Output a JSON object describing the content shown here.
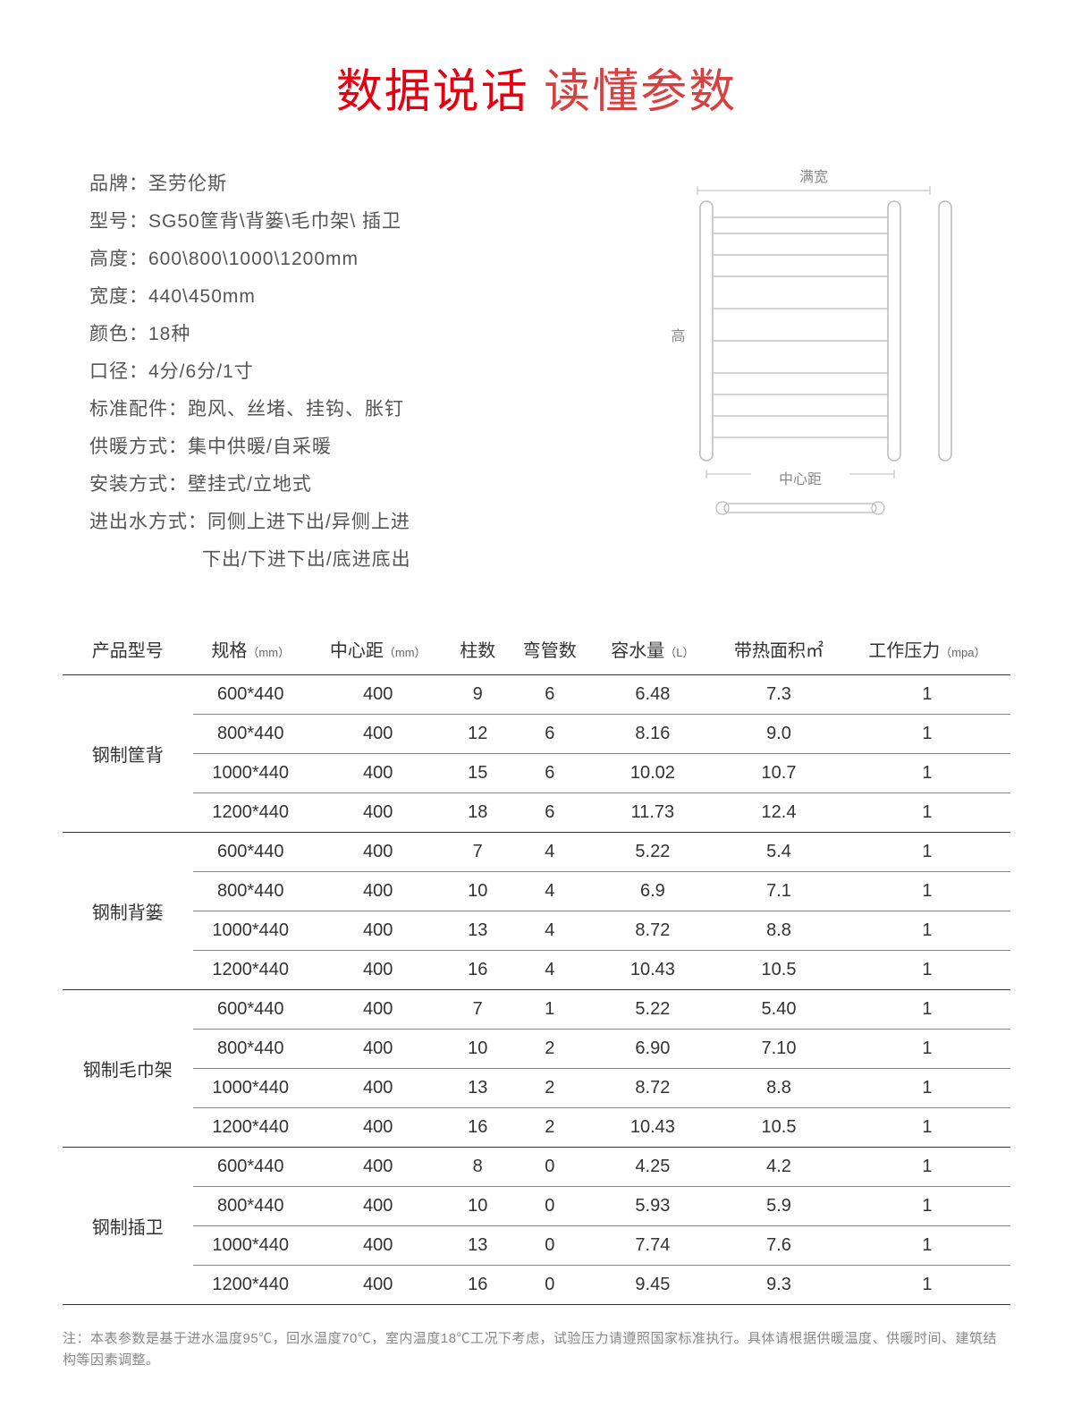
{
  "title": {
    "main": "数据说话",
    "sub": "读懂参数",
    "main_color": "#e60012",
    "sub_color": "#d84040"
  },
  "specs": [
    {
      "label": "品牌：",
      "value": "圣劳伦斯"
    },
    {
      "label": "型号：",
      "value": "SG50筐背\\背篓\\毛巾架\\ 插卫"
    },
    {
      "label": "高度：",
      "value": "600\\800\\1000\\1200mm"
    },
    {
      "label": "宽度：",
      "value": "440\\450mm"
    },
    {
      "label": "颜色：",
      "value": "18种"
    },
    {
      "label": "口径：",
      "value": "4分/6分/1寸"
    },
    {
      "label": "标准配件：",
      "value": "跑风、丝堵、挂钩、胀钉"
    },
    {
      "label": "供暖方式：",
      "value": "集中供暖/自采暖"
    },
    {
      "label": "安装方式：",
      "value": "壁挂式/立地式"
    },
    {
      "label": "进出水方式：",
      "value": "同侧上进下出/异侧上进"
    },
    {
      "label": "",
      "value": "下出/下进下出/底进底出",
      "indent": true
    }
  ],
  "diagram": {
    "label_width": "满宽",
    "label_height": "高",
    "label_center": "中心距",
    "stroke": "#bbbbbb",
    "text_color": "#888888"
  },
  "table": {
    "columns": [
      {
        "label": "产品型号",
        "unit": ""
      },
      {
        "label": "规格",
        "unit": "（mm）"
      },
      {
        "label": "中心距",
        "unit": "（mm）"
      },
      {
        "label": "柱数",
        "unit": ""
      },
      {
        "label": "弯管数",
        "unit": ""
      },
      {
        "label": "容水量",
        "unit": "（L）"
      },
      {
        "label": "带热面积㎡",
        "unit": ""
      },
      {
        "label": "工作压力",
        "unit": "（mpa）"
      }
    ],
    "groups": [
      {
        "model": "钢制筐背",
        "rows": [
          [
            "600*440",
            "400",
            "9",
            "6",
            "6.48",
            "7.3",
            "1"
          ],
          [
            "800*440",
            "400",
            "12",
            "6",
            "8.16",
            "9.0",
            "1"
          ],
          [
            "1000*440",
            "400",
            "15",
            "6",
            "10.02",
            "10.7",
            "1"
          ],
          [
            "1200*440",
            "400",
            "18",
            "6",
            "11.73",
            "12.4",
            "1"
          ]
        ]
      },
      {
        "model": "钢制背篓",
        "rows": [
          [
            "600*440",
            "400",
            "7",
            "4",
            "5.22",
            "5.4",
            "1"
          ],
          [
            "800*440",
            "400",
            "10",
            "4",
            "6.9",
            "7.1",
            "1"
          ],
          [
            "1000*440",
            "400",
            "13",
            "4",
            "8.72",
            "8.8",
            "1"
          ],
          [
            "1200*440",
            "400",
            "16",
            "4",
            "10.43",
            "10.5",
            "1"
          ]
        ]
      },
      {
        "model": "钢制毛巾架",
        "rows": [
          [
            "600*440",
            "400",
            "7",
            "1",
            "5.22",
            "5.40",
            "1"
          ],
          [
            "800*440",
            "400",
            "10",
            "2",
            "6.90",
            "7.10",
            "1"
          ],
          [
            "1000*440",
            "400",
            "13",
            "2",
            "8.72",
            "8.8",
            "1"
          ],
          [
            "1200*440",
            "400",
            "16",
            "2",
            "10.43",
            "10.5",
            "1"
          ]
        ]
      },
      {
        "model": "钢制插卫",
        "rows": [
          [
            "600*440",
            "400",
            "8",
            "0",
            "4.25",
            "4.2",
            "1"
          ],
          [
            "800*440",
            "400",
            "10",
            "0",
            "5.93",
            "5.9",
            "1"
          ],
          [
            "1000*440",
            "400",
            "13",
            "0",
            "7.74",
            "7.6",
            "1"
          ],
          [
            "1200*440",
            "400",
            "16",
            "0",
            "9.45",
            "9.3",
            "1"
          ]
        ]
      }
    ]
  },
  "footnote": "注：本表参数是基于进水温度95℃，回水温度70℃，室内温度18℃工况下考虑，试验压力请遵照国家标准执行。具体请根据供暖温度、供暖时间、建筑结构等因素调整。"
}
